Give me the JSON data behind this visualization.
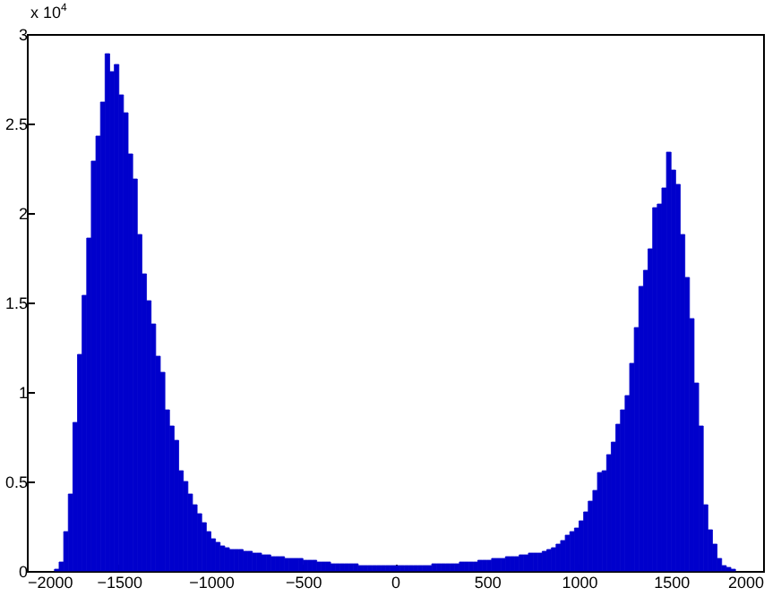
{
  "chart_data": {
    "type": "histogram",
    "color": "#0000cc",
    "grid": false,
    "bins": [
      -1850,
      -1825,
      -1800,
      -1775,
      -1750,
      -1725,
      -1700,
      -1675,
      -1650,
      -1625,
      -1600,
      -1575,
      -1550,
      -1525,
      -1500,
      -1475,
      -1450,
      -1425,
      -1400,
      -1375,
      -1350,
      -1325,
      -1300,
      -1275,
      -1250,
      -1225,
      -1200,
      -1175,
      -1150,
      -1125,
      -1100,
      -1075,
      -1050,
      -1025,
      -1000,
      -975,
      -950,
      -925,
      -900,
      -875,
      -850,
      -825,
      -800,
      -775,
      -750,
      -725,
      -700,
      -675,
      -650,
      -625,
      -600,
      -575,
      -550,
      -525,
      -500,
      -475,
      -450,
      -425,
      -400,
      -375,
      -350,
      -325,
      -300,
      -275,
      -250,
      -225,
      -200,
      -175,
      -150,
      -125,
      -100,
      -75,
      -50,
      -25,
      0,
      25,
      50,
      75,
      100,
      125,
      150,
      175,
      200,
      225,
      250,
      275,
      300,
      325,
      350,
      375,
      400,
      425,
      450,
      475,
      500,
      525,
      550,
      575,
      600,
      625,
      650,
      675,
      700,
      725,
      750,
      775,
      800,
      825,
      850,
      875,
      900,
      925,
      950,
      975,
      1000,
      1025,
      1050,
      1075,
      1100,
      1125,
      1150,
      1175,
      1200,
      1225,
      1250,
      1275,
      1300,
      1325,
      1350,
      1375,
      1400,
      1425,
      1450,
      1475,
      1500,
      1525,
      1550,
      1575,
      1600,
      1625,
      1650,
      1675,
      1700,
      1725,
      1750,
      1775,
      1800,
      1825,
      1850
    ],
    "values": [
      0.01,
      0.05,
      0.22,
      0.43,
      0.83,
      1.21,
      1.54,
      1.86,
      2.29,
      2.43,
      2.62,
      2.89,
      2.79,
      2.83,
      2.66,
      2.56,
      2.33,
      2.19,
      1.88,
      1.66,
      1.51,
      1.38,
      1.2,
      1.11,
      0.9,
      0.81,
      0.73,
      0.56,
      0.5,
      0.43,
      0.37,
      0.32,
      0.27,
      0.22,
      0.18,
      0.16,
      0.14,
      0.13,
      0.12,
      0.12,
      0.12,
      0.11,
      0.11,
      0.1,
      0.1,
      0.09,
      0.09,
      0.08,
      0.08,
      0.08,
      0.07,
      0.07,
      0.07,
      0.07,
      0.06,
      0.06,
      0.06,
      0.05,
      0.05,
      0.05,
      0.04,
      0.04,
      0.04,
      0.04,
      0.04,
      0.04,
      0.03,
      0.03,
      0.03,
      0.03,
      0.03,
      0.03,
      0.03,
      0.03,
      0.03,
      0.03,
      0.03,
      0.03,
      0.03,
      0.03,
      0.03,
      0.03,
      0.04,
      0.04,
      0.04,
      0.04,
      0.04,
      0.04,
      0.05,
      0.05,
      0.05,
      0.05,
      0.06,
      0.06,
      0.06,
      0.07,
      0.07,
      0.07,
      0.08,
      0.08,
      0.08,
      0.09,
      0.09,
      0.1,
      0.1,
      0.1,
      0.11,
      0.12,
      0.13,
      0.15,
      0.17,
      0.2,
      0.22,
      0.24,
      0.28,
      0.33,
      0.39,
      0.45,
      0.55,
      0.56,
      0.65,
      0.72,
      0.82,
      0.9,
      0.98,
      1.16,
      1.36,
      1.59,
      1.68,
      1.8,
      2.03,
      2.05,
      2.14,
      2.34,
      2.24,
      2.16,
      1.88,
      1.64,
      1.41,
      1.05,
      0.81,
      0.37,
      0.23,
      0.15,
      0.07,
      0.03,
      0.02,
      0.01
    ],
    "xlim": [
      -2000,
      2000
    ],
    "xticks": [
      -2000,
      -1500,
      -1000,
      -500,
      0,
      500,
      1000,
      1500,
      2000
    ],
    "ylim": [
      0,
      3
    ],
    "yticks": [
      0,
      0.5,
      1,
      1.5,
      2,
      2.5,
      3
    ],
    "annotations": [
      "x 10$^{4}$"
    ]
  }
}
